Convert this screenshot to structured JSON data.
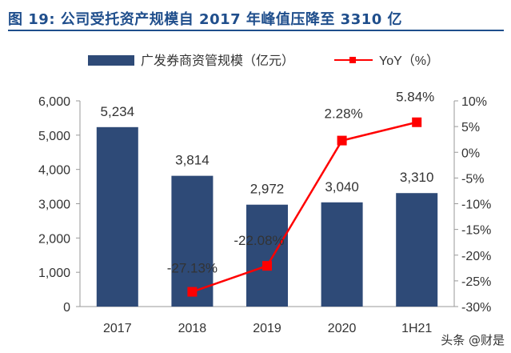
{
  "title": "图 19:  公司受托资产规模自 2017 年峰值压降至 3310 亿",
  "watermark": "头条 @财是",
  "colors": {
    "bar": "#2e4a77",
    "line": "#ff0000",
    "title": "#1f4e8c",
    "axis": "#333333"
  },
  "chart_data": {
    "type": "bar",
    "categories": [
      "2017",
      "2018",
      "2019",
      "2020",
      "1H21"
    ],
    "series": [
      {
        "name": "广发券商资管规模（亿元）",
        "kind": "bar",
        "axis": "left",
        "values": [
          5234,
          3814,
          2972,
          3040,
          3310
        ],
        "labels": [
          "5,234",
          "3,814",
          "2,972",
          "3,040",
          "3,310"
        ]
      },
      {
        "name": "YoY（%）",
        "kind": "line",
        "axis": "right",
        "values": [
          null,
          -27.13,
          -22.08,
          2.28,
          5.84
        ],
        "labels": [
          "",
          "-27.13%",
          "-22.08%",
          "2.28%",
          "5.84%"
        ]
      }
    ],
    "left_axis": {
      "ylim": [
        0,
        6000
      ],
      "ticks": [
        "0",
        "1,000",
        "2,000",
        "3,000",
        "4,000",
        "5,000",
        "6,000"
      ],
      "tick_values": [
        0,
        1000,
        2000,
        3000,
        4000,
        5000,
        6000
      ]
    },
    "right_axis": {
      "ylim": [
        -30,
        10
      ],
      "ticks": [
        "-30%",
        "-25%",
        "-20%",
        "-15%",
        "-10%",
        "-5%",
        "0%",
        "5%",
        "10%"
      ],
      "tick_values": [
        -30,
        -25,
        -20,
        -15,
        -10,
        -5,
        0,
        5,
        10
      ]
    },
    "legend_position": "top",
    "grid": false
  }
}
